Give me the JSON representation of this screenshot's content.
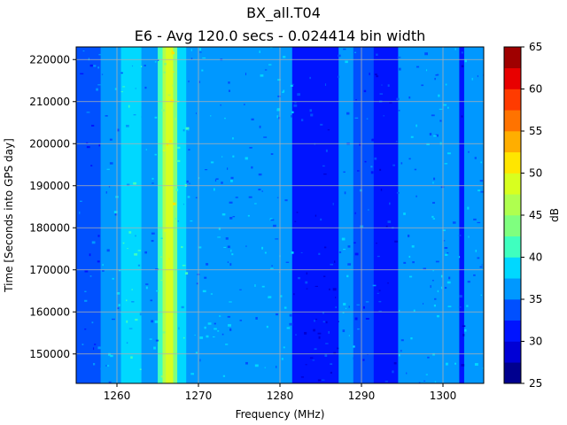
{
  "chart_data": {
    "type": "heatmap",
    "title": "BX_all.T04",
    "subtitle": "E6 - Avg 120.0 secs - 0.024414 bin width",
    "xlabel": "Frequency (MHz)",
    "ylabel": "Time [Seconds into GPS day]",
    "colorbar_label": "dB",
    "xlim": [
      1255.0,
      1305.0
    ],
    "ylim": [
      143000,
      223000
    ],
    "x_ticks": [
      1260,
      1270,
      1280,
      1290,
      1300
    ],
    "y_ticks": [
      150000,
      160000,
      170000,
      180000,
      190000,
      200000,
      210000,
      220000
    ],
    "colorbar_ticks": [
      25,
      30,
      35,
      40,
      45,
      50,
      55,
      60,
      65
    ],
    "colorbar_levels": [
      {
        "from": 25.0,
        "to": 27.5,
        "color": "#00008f"
      },
      {
        "from": 27.5,
        "to": 30.0,
        "color": "#0000d6"
      },
      {
        "from": 30.0,
        "to": 32.5,
        "color": "#0014ff"
      },
      {
        "from": 32.5,
        "to": 35.0,
        "color": "#0050ff"
      },
      {
        "from": 35.0,
        "to": 37.5,
        "color": "#0098ff"
      },
      {
        "from": 37.5,
        "to": 40.0,
        "color": "#00d8ff"
      },
      {
        "from": 40.0,
        "to": 42.5,
        "color": "#3fffbf"
      },
      {
        "from": 42.5,
        "to": 45.0,
        "color": "#7fff7f"
      },
      {
        "from": 45.0,
        "to": 47.5,
        "color": "#afff4f"
      },
      {
        "from": 47.5,
        "to": 50.0,
        "color": "#d8ff1f"
      },
      {
        "from": 50.0,
        "to": 52.5,
        "color": "#ffe600"
      },
      {
        "from": 52.5,
        "to": 55.0,
        "color": "#ffae00"
      },
      {
        "from": 55.0,
        "to": 57.5,
        "color": "#ff7300"
      },
      {
        "from": 57.5,
        "to": 60.0,
        "color": "#ff3b00"
      },
      {
        "from": 60.0,
        "to": 62.5,
        "color": "#e80000"
      },
      {
        "from": 62.5,
        "to": 65.0,
        "color": "#9f0000"
      }
    ],
    "spectrum_profile": [
      {
        "from": 1255.0,
        "to": 1258.0,
        "db": 34
      },
      {
        "from": 1258.0,
        "to": 1259.0,
        "db": 35
      },
      {
        "from": 1259.0,
        "to": 1260.5,
        "db": 36
      },
      {
        "from": 1260.5,
        "to": 1261.5,
        "db": 38
      },
      {
        "from": 1261.5,
        "to": 1263.0,
        "db": 39
      },
      {
        "from": 1263.0,
        "to": 1265.0,
        "db": 37
      },
      {
        "from": 1265.0,
        "to": 1265.6,
        "db": 41
      },
      {
        "from": 1265.6,
        "to": 1266.0,
        "db": 46
      },
      {
        "from": 1266.0,
        "to": 1266.9,
        "db": 49
      },
      {
        "from": 1266.9,
        "to": 1267.4,
        "db": 44
      },
      {
        "from": 1267.4,
        "to": 1268.5,
        "db": 38
      },
      {
        "from": 1268.5,
        "to": 1271.5,
        "db": 36
      },
      {
        "from": 1271.5,
        "to": 1281.5,
        "db": 35
      },
      {
        "from": 1281.5,
        "to": 1282.3,
        "db": 32
      },
      {
        "from": 1282.3,
        "to": 1286.0,
        "db": 30
      },
      {
        "from": 1286.0,
        "to": 1287.2,
        "db": 32
      },
      {
        "from": 1287.2,
        "to": 1289.0,
        "db": 35
      },
      {
        "from": 1289.0,
        "to": 1291.5,
        "db": 34
      },
      {
        "from": 1291.5,
        "to": 1294.5,
        "db": 32
      },
      {
        "from": 1294.5,
        "to": 1302.0,
        "db": 35
      },
      {
        "from": 1302.0,
        "to": 1302.6,
        "db": 32
      },
      {
        "from": 1302.6,
        "to": 1305.0,
        "db": 35
      }
    ],
    "grid": true
  }
}
